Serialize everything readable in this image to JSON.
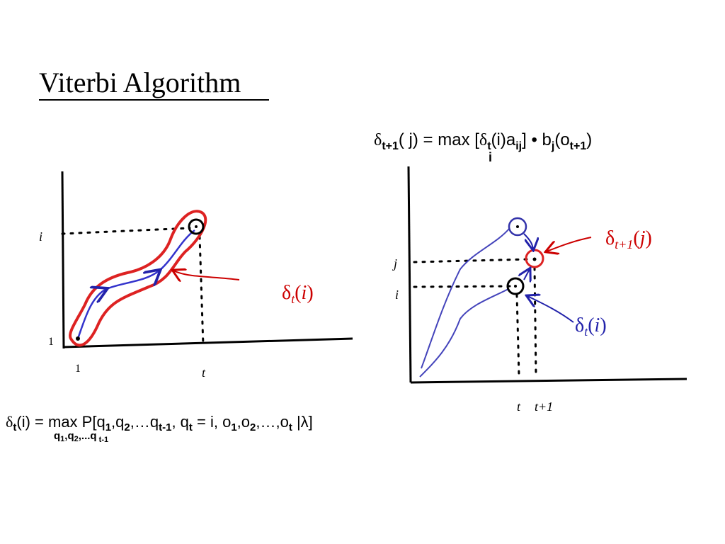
{
  "header": {
    "title": "Viterbi Algorithm"
  },
  "formula_top": {
    "parts": [
      "δ",
      "t+1",
      "( j) = max [",
      "δ",
      "t",
      "(i)a",
      "ij",
      "] • b",
      "j",
      "(o",
      "t+1",
      ")"
    ],
    "under": "i"
  },
  "left_diagram": {
    "y_label_i": "i",
    "y_label_1": "1",
    "x_label_1": "1",
    "x_label_t": "t",
    "delta": [
      "δ",
      "t",
      "(",
      "i",
      ")"
    ]
  },
  "right_diagram": {
    "y_label_j": "j",
    "y_label_i": "i",
    "x_label_t": "t",
    "x_label_t1": "t+1",
    "delta_next": [
      "δ",
      "t+1",
      "(",
      "j",
      ")"
    ],
    "delta_cur": [
      "δ",
      "t",
      "(",
      "i",
      ")"
    ]
  },
  "formula_bottom": {
    "parts": [
      "δ",
      "t",
      "(i) = max  P[q",
      "1",
      ",q",
      "2",
      ",…q",
      "t-1",
      ", q",
      "t",
      " = i, o",
      "1",
      ",o",
      "2",
      ",…,o",
      "t",
      " |λ]"
    ],
    "under": [
      "q",
      "1",
      ",q",
      "2",
      ",...q",
      " t-1"
    ]
  }
}
